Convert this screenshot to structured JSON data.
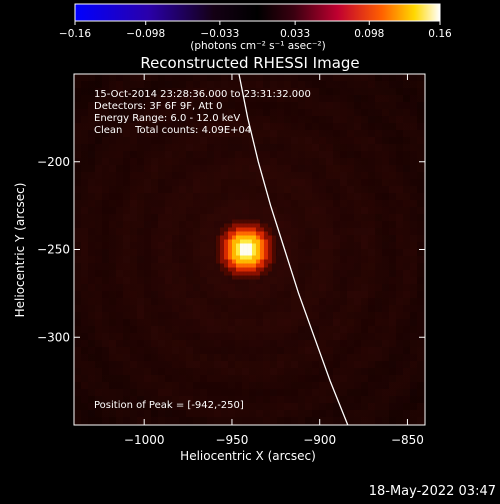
{
  "chart_data": {
    "type": "heatmap",
    "title": "Reconstructed RHESSI Image",
    "xlabel": "Heliocentric X (arcsec)",
    "ylabel": "Heliocentric Y (arcsec)",
    "xlim": [
      -1040,
      -840
    ],
    "ylim": [
      -350,
      -150
    ],
    "x_ticks": [
      {
        "value": -1000,
        "label": "−1000"
      },
      {
        "value": -950,
        "label": "−950"
      },
      {
        "value": -900,
        "label": "−900"
      },
      {
        "value": -850,
        "label": "−850"
      }
    ],
    "y_ticks": [
      {
        "value": -200,
        "label": "−200"
      },
      {
        "value": -250,
        "label": "−250"
      },
      {
        "value": -300,
        "label": "−300"
      }
    ],
    "colorbar": {
      "range": [
        -0.16,
        0.16
      ],
      "ticks": [
        {
          "value": -0.16,
          "label": "−0.16"
        },
        {
          "value": -0.098,
          "label": "−0.098"
        },
        {
          "value": -0.033,
          "label": "−0.033"
        },
        {
          "value": 0.033,
          "label": "0.033"
        },
        {
          "value": 0.098,
          "label": "0.098"
        },
        {
          "value": 0.16,
          "label": "0.16"
        }
      ],
      "unit_label": "(photons cm⁻² s⁻¹ asec⁻²)"
    },
    "annotations": [
      "15-Oct-2014 23:28:36.000 to 23:31:32.000",
      "Detectors: 3F 6F 9F, Att 0",
      "Energy Range: 6.0 - 12.0 keV",
      "Clean    Total counts: 4.09E+04"
    ],
    "peak_label": "Position of Peak = [-942,-250]",
    "peak": {
      "x": -942,
      "y": -250,
      "value": 0.16
    },
    "limb_curve": [
      {
        "x": -946,
        "y": -150
      },
      {
        "x": -941,
        "y": -175
      },
      {
        "x": -935,
        "y": -200
      },
      {
        "x": -928,
        "y": -225
      },
      {
        "x": -920,
        "y": -250
      },
      {
        "x": -912,
        "y": -275
      },
      {
        "x": -903,
        "y": -300
      },
      {
        "x": -894,
        "y": -325
      },
      {
        "x": -884,
        "y": -350
      }
    ]
  },
  "footer": {
    "timestamp": "18-May-2022 03:47"
  }
}
